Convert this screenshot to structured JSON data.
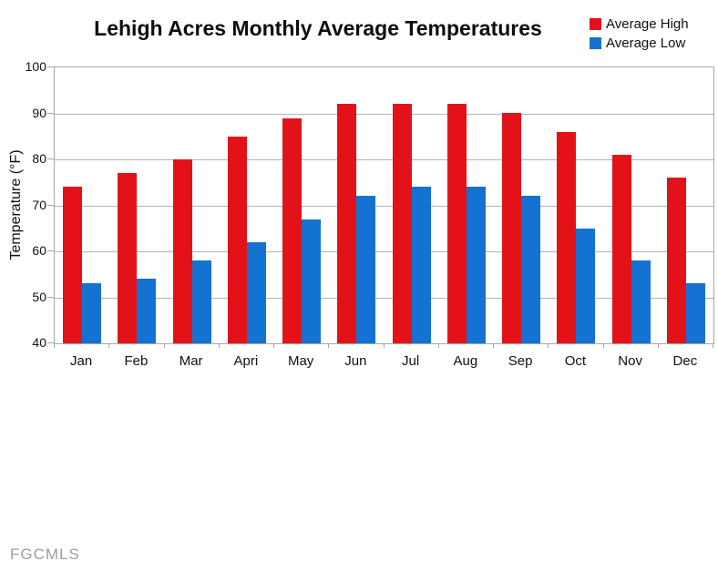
{
  "title": "Lehigh Acres Monthly Average Temperatures",
  "watermark": "FGCMLS",
  "legend": {
    "items": [
      {
        "label": "Average High",
        "color": "#e31219"
      },
      {
        "label": "Average Low",
        "color": "#1472d2"
      }
    ]
  },
  "chart_data": {
    "type": "bar",
    "title": "Lehigh Acres Monthly Average Temperatures",
    "categories": [
      "Jan",
      "Feb",
      "Mar",
      "Apri",
      "May",
      "Jun",
      "Jul",
      "Aug",
      "Sep",
      "Oct",
      "Nov",
      "Dec"
    ],
    "series": [
      {
        "name": "Average High",
        "color": "#e31219",
        "values": [
          74,
          77,
          80,
          85,
          89,
          92,
          92,
          92,
          90,
          86,
          81,
          76
        ]
      },
      {
        "name": "Average Low",
        "color": "#1472d2",
        "values": [
          53,
          54,
          58,
          62,
          67,
          72,
          74,
          74,
          72,
          65,
          58,
          53
        ]
      }
    ],
    "xlabel": "",
    "ylabel": "Temperature (°F)",
    "ylim": [
      40,
      100
    ],
    "yticks": [
      40,
      50,
      60,
      70,
      80,
      90,
      100
    ],
    "grid": true,
    "legend_position": "top-right"
  },
  "colors": {
    "grid": "#b3b3b3",
    "plot_border": "#a6a6a6",
    "watermark": "#9e9e9e"
  }
}
